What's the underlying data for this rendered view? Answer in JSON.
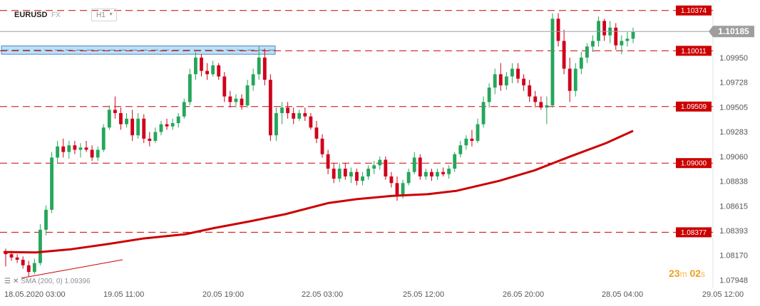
{
  "header": {
    "symbol": "EURUSD",
    "market": "FX",
    "timeframe": "H1"
  },
  "indicator": {
    "label": "SMA (200, 0) 1.09396"
  },
  "timer": {
    "minutes": "23",
    "m_unit": "m",
    "seconds": "02",
    "s_unit": "s"
  },
  "colors": {
    "up": "#26a65b",
    "down": "#d0021b",
    "sma": "#cc0000",
    "level": "#cc0000",
    "zone": "#a8d4f0",
    "price_tag": "#9e9e9e"
  },
  "chart_data": {
    "type": "candlestick",
    "symbol": "EURUSD",
    "timeframe": "H1",
    "x_labels": [
      "18.05.2020  03:00",
      "19.05  11:00",
      "20.05  19:00",
      "22.05  03:00",
      "25.05  12:00",
      "26.05  20:00",
      "28.05  04:00",
      "29.05  12:00"
    ],
    "y_ticks": [
      "1.10185",
      "1.09950",
      "1.09728",
      "1.09505",
      "1.09283",
      "1.09060",
      "1.08838",
      "1.08615",
      "1.08393",
      "1.08170",
      "1.07948"
    ],
    "ylim": [
      1.0788,
      1.1043
    ],
    "current_price": "1.10185",
    "levels": [
      "1.10374",
      "1.10011",
      "1.09509",
      "1.09000",
      "1.08377"
    ],
    "zone": {
      "from": 1.0998,
      "to": 1.10055
    },
    "sma": {
      "name": "SMA (200, 0)",
      "value": "1.09396"
    },
    "candles": [
      {
        "o": 1.082,
        "h": 1.0823,
        "l": 1.0807,
        "c": 1.0818
      },
      {
        "o": 1.0818,
        "h": 1.0821,
        "l": 1.0812,
        "c": 1.0815
      },
      {
        "o": 1.0815,
        "h": 1.0818,
        "l": 1.081,
        "c": 1.0813
      },
      {
        "o": 1.0813,
        "h": 1.0816,
        "l": 1.0805,
        "c": 1.0808
      },
      {
        "o": 1.0808,
        "h": 1.0812,
        "l": 1.0798,
        "c": 1.0802
      },
      {
        "o": 1.0802,
        "h": 1.0814,
        "l": 1.08,
        "c": 1.081
      },
      {
        "o": 1.081,
        "h": 1.0845,
        "l": 1.0808,
        "c": 1.084
      },
      {
        "o": 1.084,
        "h": 1.0862,
        "l": 1.0835,
        "c": 1.0858
      },
      {
        "o": 1.0858,
        "h": 1.091,
        "l": 1.0855,
        "c": 1.0905
      },
      {
        "o": 1.0905,
        "h": 1.092,
        "l": 1.09,
        "c": 1.0915
      },
      {
        "o": 1.0915,
        "h": 1.0922,
        "l": 1.0905,
        "c": 1.091
      },
      {
        "o": 1.091,
        "h": 1.092,
        "l": 1.0904,
        "c": 1.0916
      },
      {
        "o": 1.0916,
        "h": 1.092,
        "l": 1.0908,
        "c": 1.0912
      },
      {
        "o": 1.0912,
        "h": 1.0918,
        "l": 1.0905,
        "c": 1.0914
      },
      {
        "o": 1.0914,
        "h": 1.092,
        "l": 1.091,
        "c": 1.0912
      },
      {
        "o": 1.0912,
        "h": 1.0916,
        "l": 1.0902,
        "c": 1.0905
      },
      {
        "o": 1.0905,
        "h": 1.0915,
        "l": 1.0902,
        "c": 1.0912
      },
      {
        "o": 1.0912,
        "h": 1.0935,
        "l": 1.091,
        "c": 1.0932
      },
      {
        "o": 1.0932,
        "h": 1.0952,
        "l": 1.093,
        "c": 1.0948
      },
      {
        "o": 1.0948,
        "h": 1.096,
        "l": 1.094,
        "c": 1.0945
      },
      {
        "o": 1.0945,
        "h": 1.095,
        "l": 1.093,
        "c": 1.0935
      },
      {
        "o": 1.0935,
        "h": 1.0945,
        "l": 1.0932,
        "c": 1.094
      },
      {
        "o": 1.094,
        "h": 1.0948,
        "l": 1.092,
        "c": 1.0925
      },
      {
        "o": 1.0925,
        "h": 1.0945,
        "l": 1.0922,
        "c": 1.094
      },
      {
        "o": 1.094,
        "h": 1.0944,
        "l": 1.0918,
        "c": 1.0922
      },
      {
        "o": 1.0922,
        "h": 1.0928,
        "l": 1.0915,
        "c": 1.092
      },
      {
        "o": 1.092,
        "h": 1.0932,
        "l": 1.0918,
        "c": 1.0928
      },
      {
        "o": 1.0928,
        "h": 1.0938,
        "l": 1.0925,
        "c": 1.0935
      },
      {
        "o": 1.0935,
        "h": 1.094,
        "l": 1.093,
        "c": 1.0933
      },
      {
        "o": 1.0933,
        "h": 1.094,
        "l": 1.093,
        "c": 1.0936
      },
      {
        "o": 1.0936,
        "h": 1.0945,
        "l": 1.0932,
        "c": 1.0942
      },
      {
        "o": 1.0942,
        "h": 1.0958,
        "l": 1.094,
        "c": 1.0955
      },
      {
        "o": 1.0955,
        "h": 1.0985,
        "l": 1.0952,
        "c": 1.098
      },
      {
        "o": 1.098,
        "h": 1.1,
        "l": 1.0975,
        "c": 1.0995
      },
      {
        "o": 1.0995,
        "h": 1.0998,
        "l": 1.0978,
        "c": 1.0983
      },
      {
        "o": 1.0983,
        "h": 1.099,
        "l": 1.0975,
        "c": 1.098
      },
      {
        "o": 1.098,
        "h": 1.0992,
        "l": 1.0978,
        "c": 1.0988
      },
      {
        "o": 1.0988,
        "h": 1.099,
        "l": 1.0975,
        "c": 1.0978
      },
      {
        "o": 1.0978,
        "h": 1.0982,
        "l": 1.0955,
        "c": 1.096
      },
      {
        "o": 1.096,
        "h": 1.0965,
        "l": 1.095,
        "c": 1.0955
      },
      {
        "o": 1.0955,
        "h": 1.0962,
        "l": 1.095,
        "c": 1.0958
      },
      {
        "o": 1.0958,
        "h": 1.0962,
        "l": 1.0948,
        "c": 1.0952
      },
      {
        "o": 1.0952,
        "h": 1.0975,
        "l": 1.095,
        "c": 1.097
      },
      {
        "o": 1.097,
        "h": 1.0985,
        "l": 1.0965,
        "c": 1.098
      },
      {
        "o": 1.098,
        "h": 1.1005,
        "l": 1.0975,
        "c": 1.0995
      },
      {
        "o": 1.0995,
        "h": 1.1003,
        "l": 1.097,
        "c": 1.0975
      },
      {
        "o": 1.0975,
        "h": 1.098,
        "l": 1.092,
        "c": 1.0925
      },
      {
        "o": 1.0925,
        "h": 1.095,
        "l": 1.092,
        "c": 1.0945
      },
      {
        "o": 1.0945,
        "h": 1.0955,
        "l": 1.0935,
        "c": 1.095
      },
      {
        "o": 1.095,
        "h": 1.0955,
        "l": 1.094,
        "c": 1.0945
      },
      {
        "o": 1.0945,
        "h": 1.095,
        "l": 1.0935,
        "c": 1.094
      },
      {
        "o": 1.094,
        "h": 1.0948,
        "l": 1.0938,
        "c": 1.0945
      },
      {
        "o": 1.0945,
        "h": 1.095,
        "l": 1.0938,
        "c": 1.0942
      },
      {
        "o": 1.0942,
        "h": 1.0945,
        "l": 1.093,
        "c": 1.0932
      },
      {
        "o": 1.0932,
        "h": 1.0938,
        "l": 1.0918,
        "c": 1.0922
      },
      {
        "o": 1.0922,
        "h": 1.0926,
        "l": 1.0905,
        "c": 1.0908
      },
      {
        "o": 1.0908,
        "h": 1.0912,
        "l": 1.089,
        "c": 1.0895
      },
      {
        "o": 1.0895,
        "h": 1.09,
        "l": 1.0882,
        "c": 1.0886
      },
      {
        "o": 1.0886,
        "h": 1.09,
        "l": 1.0883,
        "c": 1.0895
      },
      {
        "o": 1.0895,
        "h": 1.09,
        "l": 1.0885,
        "c": 1.0888
      },
      {
        "o": 1.0888,
        "h": 1.0896,
        "l": 1.0882,
        "c": 1.0892
      },
      {
        "o": 1.0892,
        "h": 1.0895,
        "l": 1.088,
        "c": 1.0884
      },
      {
        "o": 1.0884,
        "h": 1.0892,
        "l": 1.088,
        "c": 1.0888
      },
      {
        "o": 1.0888,
        "h": 1.0898,
        "l": 1.0885,
        "c": 1.0895
      },
      {
        "o": 1.0895,
        "h": 1.0902,
        "l": 1.089,
        "c": 1.0898
      },
      {
        "o": 1.0898,
        "h": 1.0906,
        "l": 1.0894,
        "c": 1.0903
      },
      {
        "o": 1.0903,
        "h": 1.0906,
        "l": 1.0885,
        "c": 1.0888
      },
      {
        "o": 1.0888,
        "h": 1.0892,
        "l": 1.0878,
        "c": 1.0882
      },
      {
        "o": 1.0882,
        "h": 1.0888,
        "l": 1.0866,
        "c": 1.087
      },
      {
        "o": 1.087,
        "h": 1.0885,
        "l": 1.0868,
        "c": 1.0882
      },
      {
        "o": 1.0882,
        "h": 1.0895,
        "l": 1.088,
        "c": 1.0892
      },
      {
        "o": 1.0892,
        "h": 1.091,
        "l": 1.089,
        "c": 1.0905
      },
      {
        "o": 1.0905,
        "h": 1.0908,
        "l": 1.0885,
        "c": 1.0888
      },
      {
        "o": 1.0888,
        "h": 1.0895,
        "l": 1.0885,
        "c": 1.0892
      },
      {
        "o": 1.0892,
        "h": 1.0895,
        "l": 1.0884,
        "c": 1.0888
      },
      {
        "o": 1.0888,
        "h": 1.0895,
        "l": 1.0885,
        "c": 1.0892
      },
      {
        "o": 1.0892,
        "h": 1.0896,
        "l": 1.0888,
        "c": 1.089
      },
      {
        "o": 1.089,
        "h": 1.0898,
        "l": 1.0886,
        "c": 1.0895
      },
      {
        "o": 1.0895,
        "h": 1.091,
        "l": 1.0892,
        "c": 1.0908
      },
      {
        "o": 1.0908,
        "h": 1.092,
        "l": 1.0905,
        "c": 1.0916
      },
      {
        "o": 1.0916,
        "h": 1.0925,
        "l": 1.0912,
        "c": 1.0922
      },
      {
        "o": 1.0922,
        "h": 1.093,
        "l": 1.0915,
        "c": 1.092
      },
      {
        "o": 1.092,
        "h": 1.094,
        "l": 1.0918,
        "c": 1.0935
      },
      {
        "o": 1.0935,
        "h": 1.096,
        "l": 1.0932,
        "c": 1.0955
      },
      {
        "o": 1.0955,
        "h": 1.0972,
        "l": 1.095,
        "c": 1.0968
      },
      {
        "o": 1.0968,
        "h": 1.0985,
        "l": 1.0962,
        "c": 1.098
      },
      {
        "o": 1.098,
        "h": 1.099,
        "l": 1.0965,
        "c": 1.097
      },
      {
        "o": 1.097,
        "h": 1.0982,
        "l": 1.0966,
        "c": 1.0978
      },
      {
        "o": 1.0978,
        "h": 1.099,
        "l": 1.0972,
        "c": 1.0985
      },
      {
        "o": 1.0985,
        "h": 1.099,
        "l": 1.0972,
        "c": 1.0976
      },
      {
        "o": 1.0976,
        "h": 1.098,
        "l": 1.0965,
        "c": 1.097
      },
      {
        "o": 1.097,
        "h": 1.0975,
        "l": 1.0955,
        "c": 1.096
      },
      {
        "o": 1.096,
        "h": 1.0965,
        "l": 1.095,
        "c": 1.0955
      },
      {
        "o": 1.0955,
        "h": 1.096,
        "l": 1.0948,
        "c": 1.095
      },
      {
        "o": 1.095,
        "h": 1.096,
        "l": 1.0935,
        "c": 1.0952
      },
      {
        "o": 1.0952,
        "h": 1.1035,
        "l": 1.095,
        "c": 1.103
      },
      {
        "o": 1.103,
        "h": 1.1035,
        "l": 1.1005,
        "c": 1.101
      },
      {
        "o": 1.101,
        "h": 1.102,
        "l": 1.098,
        "c": 1.0985
      },
      {
        "o": 1.0985,
        "h": 1.0995,
        "l": 1.0955,
        "c": 1.0965
      },
      {
        "o": 1.0965,
        "h": 1.099,
        "l": 1.096,
        "c": 1.0985
      },
      {
        "o": 1.0985,
        "h": 1.1,
        "l": 1.098,
        "c": 1.0995
      },
      {
        "o": 1.0995,
        "h": 1.1008,
        "l": 1.099,
        "c": 1.1005
      },
      {
        "o": 1.1005,
        "h": 1.1015,
        "l": 1.1,
        "c": 1.101
      },
      {
        "o": 1.101,
        "h": 1.1032,
        "l": 1.1005,
        "c": 1.1028
      },
      {
        "o": 1.1028,
        "h": 1.103,
        "l": 1.101,
        "c": 1.1015
      },
      {
        "o": 1.1015,
        "h": 1.1028,
        "l": 1.1008,
        "c": 1.1022
      },
      {
        "o": 1.1022,
        "h": 1.1026,
        "l": 1.1002,
        "c": 1.1006
      },
      {
        "o": 1.1006,
        "h": 1.1015,
        "l": 1.0998,
        "c": 1.101
      },
      {
        "o": 1.101,
        "h": 1.1018,
        "l": 1.1005,
        "c": 1.1012
      },
      {
        "o": 1.1012,
        "h": 1.1022,
        "l": 1.1008,
        "c": 1.1018
      }
    ]
  }
}
